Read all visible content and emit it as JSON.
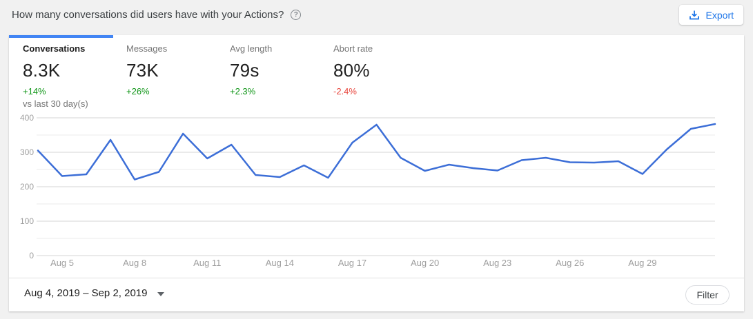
{
  "header": {
    "title": "How many conversations did users have with your Actions?",
    "export_label": "Export"
  },
  "tabs": [
    {
      "label": "Conversations",
      "value": "8.3K",
      "delta": "+14%",
      "delta_color": "green",
      "note": "vs last 30 day(s)",
      "active": true
    },
    {
      "label": "Messages",
      "value": "73K",
      "delta": "+26%",
      "delta_color": "green",
      "active": false
    },
    {
      "label": "Avg length",
      "value": "79s",
      "delta": "+2.3%",
      "delta_color": "green",
      "active": false
    },
    {
      "label": "Abort rate",
      "value": "80%",
      "delta": "-2.4%",
      "delta_color": "red",
      "active": false
    }
  ],
  "chart_data": {
    "type": "line",
    "x": [
      "Aug 4",
      "Aug 5",
      "Aug 6",
      "Aug 7",
      "Aug 8",
      "Aug 9",
      "Aug 10",
      "Aug 11",
      "Aug 12",
      "Aug 13",
      "Aug 14",
      "Aug 15",
      "Aug 16",
      "Aug 17",
      "Aug 18",
      "Aug 19",
      "Aug 20",
      "Aug 21",
      "Aug 22",
      "Aug 23",
      "Aug 24",
      "Aug 25",
      "Aug 26",
      "Aug 27",
      "Aug 28",
      "Aug 29",
      "Aug 30",
      "Aug 31",
      "Sep 1"
    ],
    "values": [
      305,
      231,
      236,
      336,
      221,
      243,
      354,
      282,
      322,
      234,
      228,
      262,
      226,
      328,
      380,
      284,
      246,
      264,
      254,
      247,
      277,
      284,
      271,
      270,
      274,
      237,
      308,
      368,
      382
    ],
    "ylim": [
      0,
      400
    ],
    "y_major_step": 100,
    "y_minor_step": 50,
    "y_tick_labels": [
      "0",
      "100",
      "200",
      "300",
      "400"
    ],
    "x_tick_indices": [
      1,
      4,
      7,
      10,
      13,
      16,
      19,
      22,
      25
    ],
    "x_tick_labels": [
      "Aug 5",
      "Aug 8",
      "Aug 11",
      "Aug 14",
      "Aug 17",
      "Aug 20",
      "Aug 23",
      "Aug 26",
      "Aug 29"
    ],
    "grid": true,
    "legend": false,
    "line_color": "#3c6ed7",
    "axis_label_color": "#9e9e9e",
    "grid_major_color": "#d6d6d6",
    "grid_minor_color": "#ebebeb"
  },
  "footer": {
    "date_range": "Aug 4, 2019 – Sep 2, 2019",
    "filter_label": "Filter"
  },
  "colors": {
    "accent_blue": "#4285f4",
    "link_blue": "#1a73e8",
    "positive_green": "#109618",
    "negative_red": "#e8453c",
    "page_background": "#f1f1f1"
  }
}
